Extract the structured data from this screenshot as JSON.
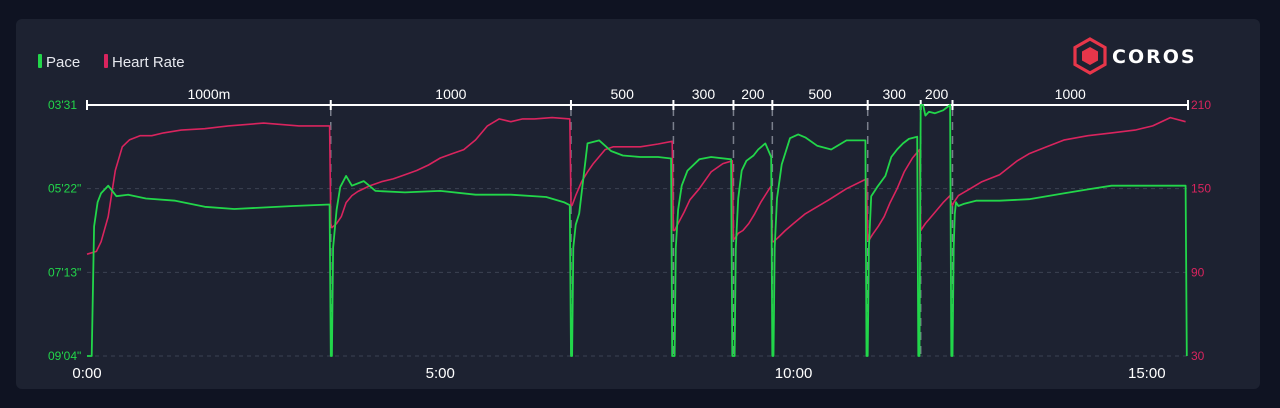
{
  "brand": {
    "name": "COROS",
    "color": "#e8364a"
  },
  "chart_data": {
    "type": "line",
    "legend": [
      {
        "name": "Pace",
        "color": "#22d64a"
      },
      {
        "name": "Heart Rate",
        "color": "#d9245e"
      }
    ],
    "x_ticks": [
      {
        "label": "0:00",
        "value": 0
      },
      {
        "label": "5:00",
        "value": 300
      },
      {
        "label": "10:00",
        "value": 600
      },
      {
        "label": "15:00",
        "value": 900
      }
    ],
    "x_range": [
      0,
      935
    ],
    "left_axis": {
      "series": "Pace",
      "unit": "seconds per km",
      "range": [
        211,
        544
      ],
      "inverted": true,
      "ticks": [
        {
          "label": "03'31",
          "value": 211
        },
        {
          "label": "05'22\"",
          "value": 322
        },
        {
          "label": "07'13\"",
          "value": 433
        },
        {
          "label": "09'04\"",
          "value": 544
        }
      ]
    },
    "right_axis": {
      "series": "Heart Rate",
      "range": [
        30,
        210
      ],
      "ticks": [
        {
          "label": "210",
          "value": 210
        },
        {
          "label": "150",
          "value": 150
        },
        {
          "label": "90",
          "value": 90
        },
        {
          "label": "30",
          "value": 30
        }
      ]
    },
    "grid": "dashed horizontal",
    "intervals": [
      {
        "label": "1000m",
        "start": 0,
        "end": 207
      },
      {
        "label": "1000",
        "start": 207,
        "end": 411
      },
      {
        "label": "500",
        "start": 411,
        "end": 498
      },
      {
        "label": "300",
        "start": 498,
        "end": 549
      },
      {
        "label": "200",
        "start": 549,
        "end": 582
      },
      {
        "label": "500",
        "start": 582,
        "end": 663
      },
      {
        "label": "300",
        "start": 663,
        "end": 708
      },
      {
        "label": "200",
        "start": 708,
        "end": 735
      },
      {
        "label": "1000",
        "start": 735,
        "end": 935
      }
    ],
    "series": [
      {
        "name": "Pace",
        "x": [
          0,
          4,
          6,
          9,
          12,
          18,
          25,
          35,
          50,
          75,
          100,
          125,
          150,
          175,
          206,
          207,
          208,
          209,
          212,
          215,
          220,
          225,
          235,
          245,
          270,
          300,
          330,
          360,
          390,
          405,
          410,
          411,
          412,
          413,
          415,
          418,
          425,
          435,
          445,
          455,
          470,
          485,
          496,
          497,
          498,
          499,
          500,
          502,
          505,
          510,
          520,
          530,
          547,
          548,
          549,
          550,
          551,
          553,
          556,
          560,
          566,
          570,
          576,
          581,
          582,
          583,
          584,
          586,
          590,
          597,
          604,
          610,
          620,
          632,
          645,
          661,
          662,
          663,
          664,
          666,
          671,
          678,
          683,
          688,
          693,
          698,
          705,
          706,
          707,
          708,
          709,
          710,
          712,
          715,
          720,
          727,
          733,
          734,
          735,
          736,
          737,
          738,
          740,
          745,
          755,
          775,
          800,
          830,
          850,
          870,
          890,
          933,
          934
        ],
        "y": [
          544,
          544,
          372,
          340,
          328,
          318,
          332,
          330,
          335,
          338,
          346,
          349,
          347,
          345,
          343,
          544,
          544,
          400,
          350,
          320,
          305,
          318,
          312,
          325,
          327,
          325,
          330,
          330,
          333,
          340,
          344,
          544,
          544,
          400,
          370,
          355,
          262,
          258,
          272,
          278,
          280,
          280,
          282,
          544,
          544,
          544,
          400,
          350,
          318,
          298,
          283,
          280,
          283,
          544,
          544,
          544,
          400,
          335,
          298,
          285,
          278,
          270,
          262,
          280,
          544,
          544,
          400,
          335,
          290,
          255,
          250,
          254,
          265,
          270,
          258,
          258,
          544,
          544,
          400,
          332,
          320,
          305,
          280,
          270,
          262,
          256,
          253,
          544,
          544,
          211,
          211,
          211,
          225,
          220,
          222,
          218,
          211,
          544,
          544,
          400,
          355,
          340,
          345,
          342,
          338,
          338,
          336,
          328,
          323,
          318,
          318,
          318,
          544
        ]
      },
      {
        "name": "Heart Rate",
        "x": [
          0,
          8,
          12,
          18,
          24,
          30,
          36,
          45,
          55,
          65,
          80,
          100,
          120,
          150,
          180,
          206,
          207,
          208,
          212,
          216,
          220,
          225,
          230,
          240,
          250,
          260,
          270,
          280,
          290,
          300,
          310,
          320,
          330,
          340,
          350,
          360,
          370,
          380,
          395,
          410,
          411,
          412,
          415,
          420,
          425,
          430,
          435,
          440,
          447,
          455,
          470,
          485,
          497,
          498,
          499,
          502,
          507,
          512,
          520,
          530,
          540,
          548,
          549,
          550,
          553,
          557,
          562,
          567,
          572,
          578,
          581,
          582,
          583,
          587,
          593,
          600,
          610,
          620,
          630,
          645,
          662,
          663,
          664,
          667,
          672,
          677,
          682,
          688,
          694,
          701,
          707,
          708,
          712,
          717,
          722,
          727,
          733,
          734,
          735,
          736,
          740,
          750,
          760,
          775,
          790,
          800,
          815,
          830,
          850,
          870,
          890,
          905,
          920,
          933
        ],
        "y": [
          103,
          105,
          112,
          130,
          163,
          180,
          185,
          188,
          188,
          190,
          192,
          193,
          195,
          197,
          195,
          195,
          125,
          122,
          125,
          130,
          140,
          145,
          148,
          152,
          155,
          157,
          160,
          163,
          167,
          172,
          175,
          178,
          185,
          195,
          200,
          198,
          200,
          200,
          201,
          200,
          138,
          138,
          145,
          155,
          162,
          168,
          173,
          178,
          180,
          180,
          180,
          182,
          184,
          120,
          120,
          125,
          133,
          142,
          150,
          162,
          168,
          170,
          114,
          114,
          118,
          120,
          125,
          132,
          140,
          148,
          152,
          112,
          112,
          115,
          120,
          125,
          132,
          137,
          142,
          150,
          157,
          113,
          113,
          117,
          123,
          130,
          140,
          150,
          162,
          172,
          178,
          120,
          125,
          130,
          135,
          140,
          145,
          140,
          138,
          140,
          145,
          150,
          155,
          160,
          170,
          175,
          180,
          185,
          188,
          190,
          192,
          195,
          201,
          198
        ]
      }
    ]
  }
}
